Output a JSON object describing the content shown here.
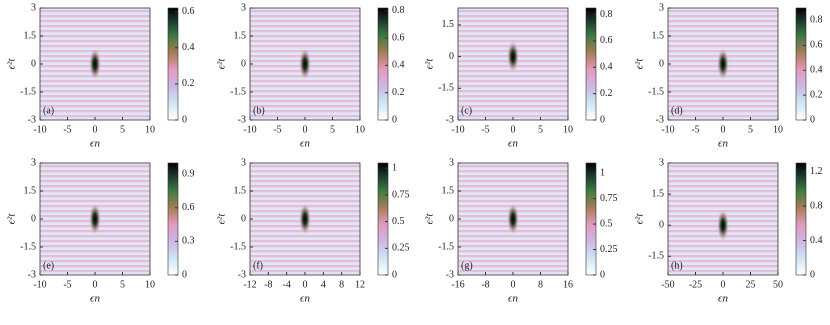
{
  "chart_data": [
    {
      "type": "heatmap",
      "panel_label": "(a)",
      "xlabel": "ϵn",
      "ylabel": "ϵ²t",
      "xlim": [
        -10,
        10
      ],
      "xticks": [
        -10,
        -5,
        0,
        5,
        10
      ],
      "ylim": [
        -3,
        3
      ],
      "yticks": [
        -3,
        -1.5,
        0,
        1.5,
        3
      ],
      "clim": [
        0,
        0.62
      ],
      "cticks": [
        0,
        0.2,
        0.4,
        0.6
      ]
    },
    {
      "type": "heatmap",
      "panel_label": "(b)",
      "xlabel": "ϵn",
      "ylabel": "ϵ²t",
      "xlim": [
        -10,
        10
      ],
      "xticks": [
        -10,
        -5,
        0,
        5,
        10
      ],
      "ylim": [
        -3,
        3
      ],
      "yticks": [
        -3,
        -1.5,
        0,
        1.5,
        3
      ],
      "clim": [
        0,
        0.82
      ],
      "cticks": [
        0,
        0.2,
        0.4,
        0.6,
        0.8
      ]
    },
    {
      "type": "heatmap",
      "panel_label": "(c)",
      "xlabel": "ϵn",
      "ylabel": "ϵ²t",
      "xlim": [
        -10,
        10
      ],
      "xticks": [
        -10,
        -5,
        0,
        5,
        10
      ],
      "ylim": [
        -3,
        2.3
      ],
      "yticks": [
        -3,
        -1.5,
        0,
        1.5
      ],
      "clim": [
        0,
        0.85
      ],
      "cticks": [
        0,
        0.2,
        0.4,
        0.6,
        0.8
      ]
    },
    {
      "type": "heatmap",
      "panel_label": "(d)",
      "xlabel": "ϵn",
      "ylabel": "ϵ²t",
      "xlim": [
        -10,
        10
      ],
      "xticks": [
        -10,
        -5,
        0,
        5,
        10
      ],
      "ylim": [
        -3,
        3
      ],
      "yticks": [
        -3,
        -1.5,
        0,
        1.5,
        3
      ],
      "clim": [
        0,
        0.9
      ],
      "cticks": [
        0,
        0.2,
        0.4,
        0.6,
        0.8
      ]
    },
    {
      "type": "heatmap",
      "panel_label": "(e)",
      "xlabel": "ϵn",
      "ylabel": "ϵ²t",
      "xlim": [
        -10,
        10
      ],
      "xticks": [
        -10,
        -5,
        0,
        5,
        10
      ],
      "ylim": [
        -3,
        3
      ],
      "yticks": [
        -3,
        -1.5,
        0,
        1.5,
        3
      ],
      "clim": [
        0,
        1
      ],
      "cticks": [
        0,
        0.3,
        0.6,
        0.9
      ]
    },
    {
      "type": "heatmap",
      "panel_label": "(f)",
      "xlabel": "ϵn",
      "ylabel": "ϵ²t",
      "xlim": [
        -12,
        12
      ],
      "xticks": [
        -12,
        -8,
        -4,
        0,
        4,
        8,
        12
      ],
      "ylim": [
        -3,
        3
      ],
      "yticks": [
        -3,
        -1.5,
        0,
        1.5,
        3
      ],
      "clim": [
        0,
        1.05
      ],
      "cticks": [
        0,
        0.25,
        0.5,
        0.75,
        1
      ]
    },
    {
      "type": "heatmap",
      "panel_label": "(g)",
      "xlabel": "ϵn",
      "ylabel": "ϵ²t",
      "xlim": [
        -16,
        16
      ],
      "xticks": [
        -16,
        -8,
        0,
        8,
        16
      ],
      "ylim": [
        -3,
        3
      ],
      "yticks": [
        -3,
        -1.5,
        0,
        1.5,
        3
      ],
      "clim": [
        0,
        1.1
      ],
      "cticks": [
        0,
        0.25,
        0.5,
        0.75,
        1
      ]
    },
    {
      "type": "heatmap",
      "panel_label": "(h)",
      "xlabel": "ϵn",
      "ylabel": "ϵ²t",
      "xlim": [
        -50,
        50
      ],
      "xticks": [
        -50,
        -25,
        0,
        25,
        50
      ],
      "ylim": [
        -2.4,
        3
      ],
      "yticks": [
        -1.5,
        0,
        1.5,
        3
      ],
      "clim": [
        0,
        1.3
      ],
      "cticks": [
        0,
        0.4,
        0.8,
        1.2
      ]
    }
  ]
}
